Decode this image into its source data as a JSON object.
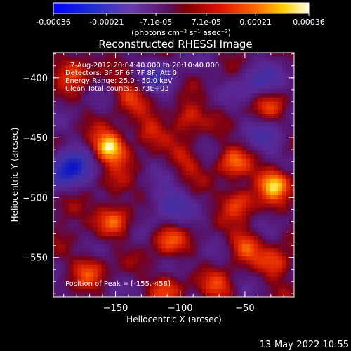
{
  "colorbar": {
    "tick_labels": [
      "-0.00036",
      "-0.00021",
      "-7.1e-05",
      "7.1e-05",
      "0.00021",
      "0.00036"
    ],
    "tick_values": [
      -0.00036,
      -0.00021,
      -7.1e-05,
      7.1e-05,
      0.00021,
      0.00036
    ],
    "range": [
      -0.00036,
      0.00036
    ],
    "unit_label": "(photons cm⁻² s⁻¹ asec⁻²)"
  },
  "timestamp": "13-May-2022 10:55",
  "chart_data": {
    "type": "heatmap",
    "title": "Reconstructed RHESSI Image",
    "xlabel": "Heliocentric X (arcsec)",
    "ylabel": "Heliocentric Y (arcsec)",
    "xlim": [
      -198,
      -12
    ],
    "ylim": [
      -583,
      -379
    ],
    "x_ticks": [
      -150,
      -100,
      -50
    ],
    "x_tick_labels": [
      "−150",
      "−100",
      "−50"
    ],
    "y_ticks": [
      -400,
      -450,
      -500,
      -550
    ],
    "y_tick_labels": [
      "−400",
      "−450",
      "−500",
      "−550"
    ],
    "colormap": "rhessi-blue-purple-red-yellow",
    "info_lines": [
      "7-Aug-2012 20:04:40.000 to 20:10:40.000",
      "Detectors: 3F 5F 6F 7F 8F, Att 0",
      "Energy Range: 25.0 - 50.0 keV",
      "Clean     Total counts: 5.73E+03"
    ],
    "peak_label": "Position of Peak = [-155,-458]",
    "peak_position": [
      -155,
      -458
    ],
    "bright_regions": [
      {
        "x": -155,
        "y": -458,
        "level": 1.0
      },
      {
        "x": -27,
        "y": -488,
        "level": 0.95
      },
      {
        "x": -182,
        "y": -393,
        "level": 0.6
      },
      {
        "x": -95,
        "y": -432,
        "level": 0.55
      },
      {
        "x": -60,
        "y": -470,
        "level": 0.55
      },
      {
        "x": -55,
        "y": -503,
        "level": 0.6
      },
      {
        "x": -50,
        "y": -540,
        "level": 0.55
      },
      {
        "x": -110,
        "y": -535,
        "level": 0.5
      },
      {
        "x": -150,
        "y": -520,
        "level": 0.5
      },
      {
        "x": -25,
        "y": -555,
        "level": 0.55
      },
      {
        "x": -170,
        "y": -560,
        "level": 0.5
      },
      {
        "x": -110,
        "y": -575,
        "level": 0.45
      },
      {
        "x": -70,
        "y": -575,
        "level": 0.45
      },
      {
        "x": -125,
        "y": -445,
        "level": 0.45
      },
      {
        "x": -140,
        "y": -415,
        "level": 0.45
      },
      {
        "x": -30,
        "y": -425,
        "level": 0.4
      },
      {
        "x": -185,
        "y": -510,
        "level": 0.4
      },
      {
        "x": -150,
        "y": -490,
        "level": 0.4
      },
      {
        "x": -95,
        "y": -470,
        "level": 0.35
      }
    ],
    "dark_regions": [
      {
        "x": -185,
        "y": -478,
        "level": -1.0
      },
      {
        "x": -110,
        "y": -505,
        "level": -0.5
      },
      {
        "x": -40,
        "y": -403,
        "level": -0.45
      },
      {
        "x": -115,
        "y": -400,
        "level": -0.4
      },
      {
        "x": -30,
        "y": -450,
        "level": -0.35
      }
    ]
  }
}
